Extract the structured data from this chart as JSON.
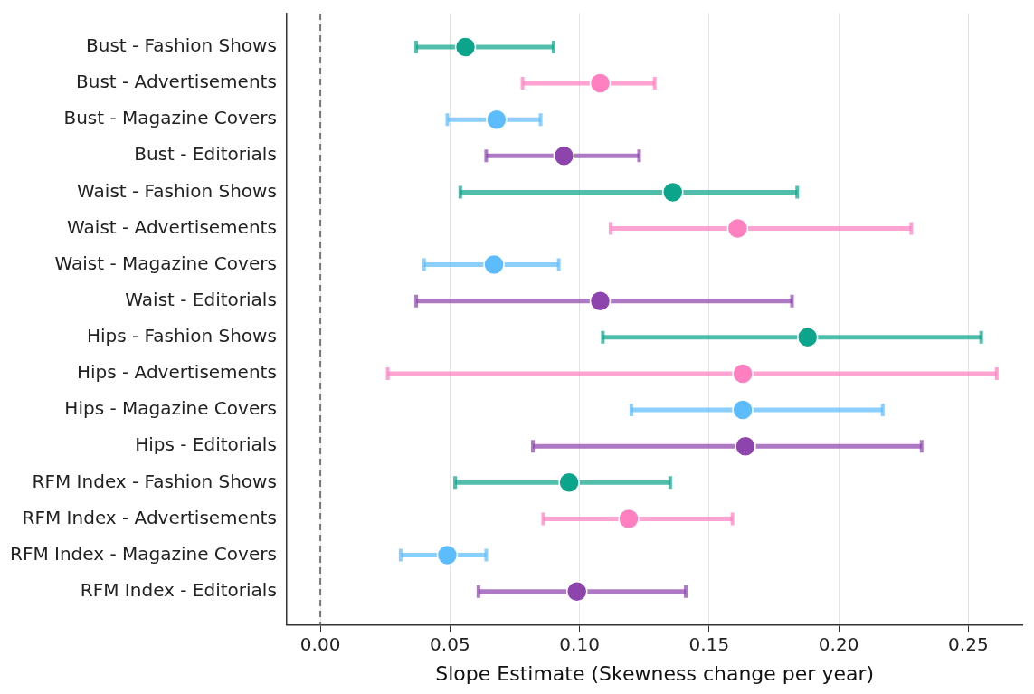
{
  "chart_data": {
    "type": "scatter",
    "orientation": "horizontal",
    "xlabel": "Slope Estimate (Skewness change per year)",
    "categories": [
      "Bust - Fashion Shows",
      "Bust - Advertisements",
      "Bust - Magazine Covers",
      "Bust - Editorials",
      "Waist - Fashion Shows",
      "Waist - Advertisements",
      "Waist - Magazine Covers",
      "Waist - Editorials",
      "Hips - Fashion Shows",
      "Hips - Advertisements",
      "Hips - Magazine Covers",
      "Hips - Editorials",
      "RFM Index - Fashion Shows",
      "RFM Index - Advertisements",
      "RFM Index - Magazine Covers",
      "RFM Index - Editorials"
    ],
    "values": [
      0.056,
      0.108,
      0.068,
      0.094,
      0.136,
      0.161,
      0.067,
      0.108,
      0.188,
      0.163,
      0.163,
      0.164,
      0.096,
      0.119,
      0.049,
      0.099
    ],
    "errors": [
      [
        0.037,
        0.09
      ],
      [
        0.078,
        0.129
      ],
      [
        0.049,
        0.085
      ],
      [
        0.064,
        0.123
      ],
      [
        0.054,
        0.184
      ],
      [
        0.112,
        0.228
      ],
      [
        0.04,
        0.092
      ],
      [
        0.037,
        0.182
      ],
      [
        0.109,
        0.255
      ],
      [
        0.026,
        0.261
      ],
      [
        0.12,
        0.217
      ],
      [
        0.082,
        0.232
      ],
      [
        0.052,
        0.135
      ],
      [
        0.086,
        0.159
      ],
      [
        0.031,
        0.064
      ],
      [
        0.061,
        0.141
      ]
    ],
    "colors": [
      "#0ca58b",
      "#ff80c0",
      "#5dbdfc",
      "#8e44ad",
      "#0ca58b",
      "#ff80c0",
      "#5dbdfc",
      "#8e44ad",
      "#0ca58b",
      "#ff80c0",
      "#5dbdfc",
      "#8e44ad",
      "#0ca58b",
      "#ff80c0",
      "#5dbdfc",
      "#8e44ad"
    ],
    "xlim": [
      -0.013,
      0.271
    ],
    "xticks": [
      {
        "value": 0,
        "label": "0.00"
      },
      {
        "value": 0.05,
        "label": "0.05"
      },
      {
        "value": 0.1,
        "label": "0.10"
      },
      {
        "value": 0.15,
        "label": "0.15"
      },
      {
        "value": 0.2,
        "label": "0.20"
      },
      {
        "value": 0.25,
        "label": "0.25"
      }
    ],
    "ref_lines": [
      {
        "axis": "x",
        "value": 0,
        "color": "#777777",
        "line_style": "dashed"
      }
    ],
    "grid": "x",
    "marker": "circle",
    "legend": false
  }
}
